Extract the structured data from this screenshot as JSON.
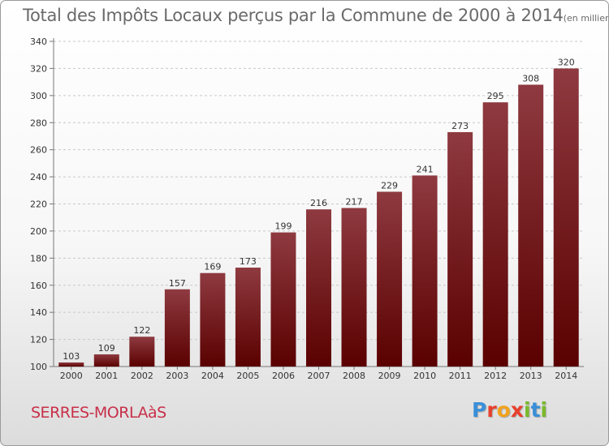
{
  "header": {
    "title": "Total des Impôts Locaux perçus par la Commune de 2000 à 2014",
    "unit": "(en milliers d'€)"
  },
  "footer": {
    "commune": "SERRES-MORLAàS",
    "logo_letters": [
      "P",
      "r",
      "o",
      "x",
      "i",
      "t",
      "i"
    ],
    "logo_colors": [
      "#3a8fd8",
      "#e8402c",
      "#f2a21c",
      "#e8402c",
      "#7ab92c",
      "#3a8fd8",
      "#7ab92c"
    ]
  },
  "chart_data": {
    "type": "bar",
    "categories": [
      "2000",
      "2001",
      "2002",
      "2003",
      "2004",
      "2005",
      "2006",
      "2007",
      "2008",
      "2009",
      "2010",
      "2011",
      "2012",
      "2013",
      "2014"
    ],
    "values": [
      103,
      109,
      122,
      157,
      169,
      173,
      199,
      216,
      217,
      229,
      241,
      273,
      295,
      308,
      320
    ],
    "ylim": [
      100,
      340
    ],
    "yticks": [
      100,
      120,
      140,
      160,
      180,
      200,
      220,
      240,
      260,
      280,
      300,
      320,
      340
    ],
    "grid": true,
    "bar_color_light": "#8e3a40",
    "bar_color_dark": "#5a0000",
    "title": "Total des Impôts Locaux perçus par la Commune de 2000 à 2014",
    "xlabel": "",
    "ylabel": ""
  }
}
